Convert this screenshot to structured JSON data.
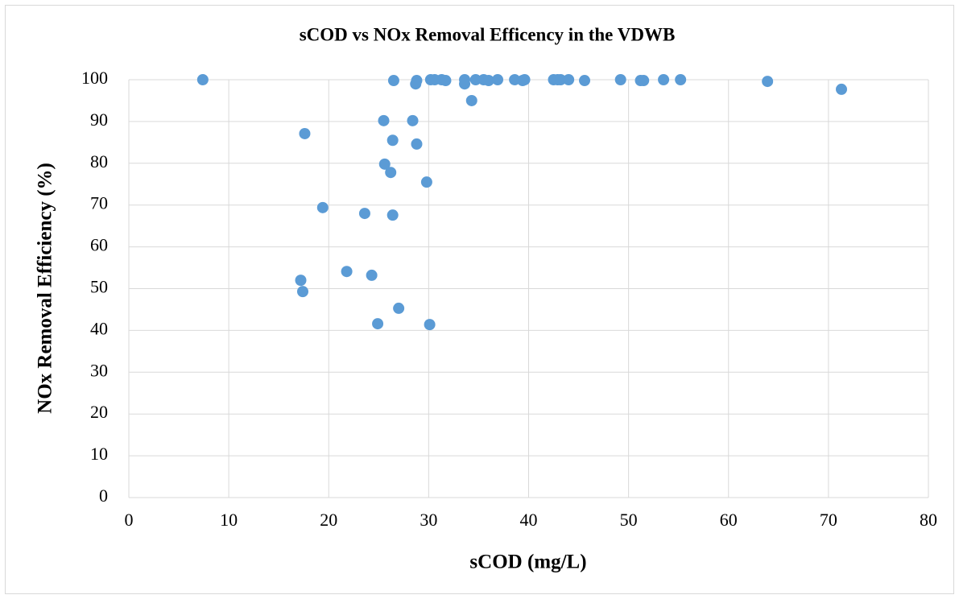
{
  "chart_data": {
    "type": "scatter",
    "title": "sCOD vs NOx Removal Efficency in the VDWB",
    "xlabel": "sCOD (mg/L)",
    "ylabel": "NOx Removal Efficiency (%)",
    "color": "#5b9bd5",
    "x": [
      7.4,
      17.6,
      19.4,
      17.2,
      17.4,
      21.8,
      23.6,
      24.3,
      24.9,
      25.5,
      25.6,
      26.2,
      26.4,
      26.4,
      27.0,
      26.5,
      28.4,
      28.8,
      28.7,
      28.8,
      29.8,
      30.1,
      30.2,
      30.6,
      31.3,
      31.7,
      33.6,
      33.6,
      34.3,
      34.7,
      35.5,
      36.0,
      36.9,
      38.6,
      39.4,
      39.6,
      42.5,
      42.9,
      43.2,
      44.0,
      45.6,
      49.2,
      51.2,
      51.5,
      53.5,
      55.2,
      63.9,
      71.3
    ],
    "values": [
      100,
      87.1,
      69.4,
      52.0,
      49.3,
      54.1,
      68.0,
      53.2,
      41.6,
      90.2,
      79.8,
      77.8,
      85.5,
      67.6,
      45.3,
      99.8,
      90.2,
      99.8,
      99.0,
      84.6,
      75.5,
      41.4,
      100,
      100,
      100,
      99.8,
      99.0,
      100,
      95.0,
      100,
      100,
      99.8,
      100,
      100,
      99.8,
      100,
      100,
      100,
      100,
      100,
      99.8,
      100,
      99.8,
      99.8,
      100,
      100,
      99.6,
      97.7
    ],
    "xlim": [
      0,
      80
    ],
    "xticks": [
      0,
      10,
      20,
      30,
      40,
      50,
      60,
      70,
      80
    ],
    "ylim": [
      0,
      100
    ],
    "yticks": [
      0,
      10,
      20,
      30,
      40,
      50,
      60,
      70,
      80,
      90,
      100
    ],
    "grid": true
  }
}
